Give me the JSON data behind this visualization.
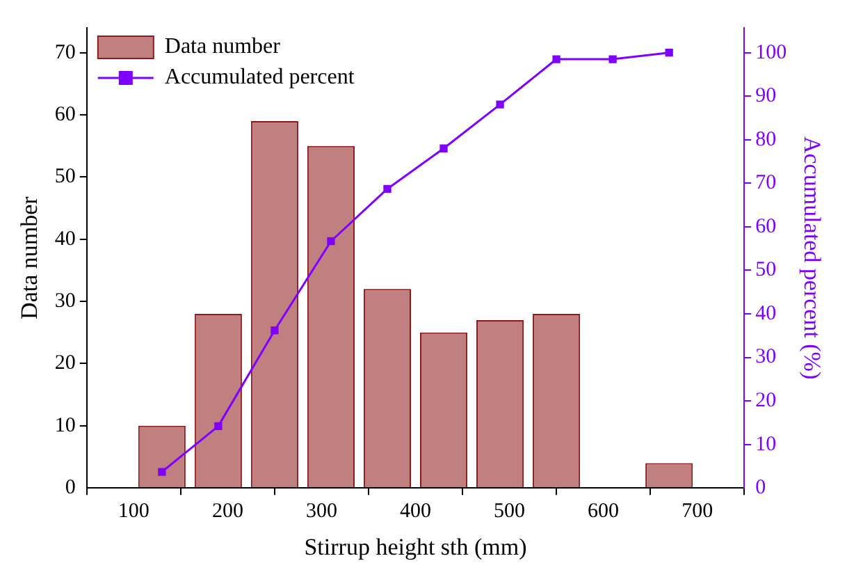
{
  "chart_data": {
    "type": "bar",
    "xlabel": "Stirrup height sth (mm)",
    "ylabel": "Data number",
    "y2label": "Accumulated percent (%)",
    "x": [
      130,
      190,
      250,
      310,
      370,
      430,
      490,
      550,
      610,
      670
    ],
    "series": [
      {
        "name": "Data number",
        "color": "#c08080",
        "values": [
          10,
          28,
          59,
          55,
          32,
          25,
          27,
          28,
          0,
          4
        ]
      },
      {
        "name": "Accumulated percent",
        "type": "line",
        "axis": "y2",
        "color": "#8000ff",
        "marker": "square",
        "values": [
          3.7,
          14.2,
          36.2,
          56.7,
          68.7,
          78.0,
          88.1,
          98.5,
          98.5,
          100
        ]
      }
    ],
    "xlim": [
      50,
      750
    ],
    "xticks": [
      100,
      200,
      300,
      400,
      500,
      600,
      700
    ],
    "ylim": [
      0,
      74
    ],
    "yticks": [
      0,
      10,
      20,
      30,
      40,
      50,
      60,
      70
    ],
    "y2lim": [
      0,
      105.7
    ],
    "y2ticks": [
      0,
      10,
      20,
      30,
      40,
      50,
      60,
      70,
      80,
      90,
      100
    ],
    "grid": false,
    "legend": "top left"
  }
}
